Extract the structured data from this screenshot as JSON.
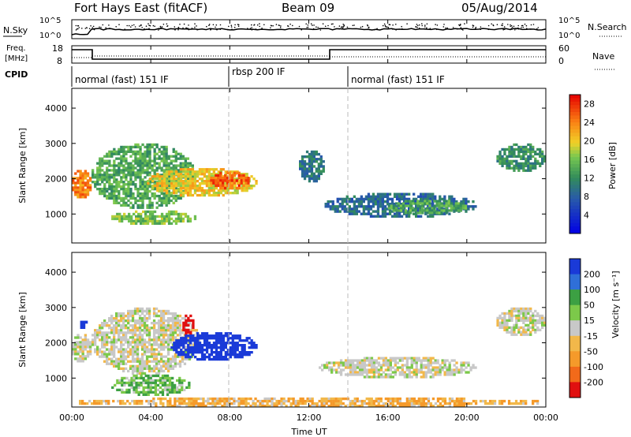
{
  "header": {
    "station": "Fort Hays East (fitACF)",
    "beam": "Beam 09",
    "date": "05/Aug/2014"
  },
  "noise_panel": {
    "left_label": "N.Sky",
    "right_label": "N.Search",
    "yticks": [
      "10^5",
      "10^0"
    ]
  },
  "freq_panel": {
    "left_label_1": "Freq.",
    "left_label_2": "[MHz]",
    "right_label": "Nave",
    "left_ticks": [
      "18",
      "8"
    ],
    "right_ticks": [
      "60",
      "0"
    ]
  },
  "cpid_panel": {
    "label": "CPID",
    "segments": [
      {
        "name": "normal (fast) 151 IF",
        "start": 0.0
      },
      {
        "name": "rbsp 200 IF",
        "start": 8.0
      },
      {
        "name": "normal (fast) 151 IF",
        "start": 14.0
      }
    ]
  },
  "chart_data": [
    {
      "type": "heatmap",
      "ylabel": "Slant Range [km]",
      "colorbar_label": "Power [dB]",
      "colorbar_ticks": [
        "28",
        "24",
        "20",
        "16",
        "12",
        "8",
        "4"
      ],
      "colorbar_range": [
        0,
        30
      ],
      "ylim": [
        180,
        4560
      ],
      "yticks": [
        1000,
        2000,
        3000,
        4000
      ],
      "xlim": [
        0,
        24
      ],
      "echo_regions": [
        {
          "t0": 0.0,
          "t1": 1.0,
          "r0": 1450,
          "r1": 2250,
          "level": 24
        },
        {
          "t0": 1.0,
          "t1": 6.3,
          "r0": 1150,
          "r1": 3000,
          "level": 14
        },
        {
          "t0": 2.0,
          "t1": 6.3,
          "r0": 700,
          "r1": 1100,
          "level": 16
        },
        {
          "t0": 3.8,
          "t1": 9.4,
          "r0": 1500,
          "r1": 2300,
          "level": 20
        },
        {
          "t0": 7.0,
          "t1": 9.0,
          "r0": 1700,
          "r1": 2200,
          "level": 26
        },
        {
          "t0": 11.5,
          "t1": 12.8,
          "r0": 1900,
          "r1": 2800,
          "level": 10
        },
        {
          "t0": 12.8,
          "t1": 20.5,
          "r0": 900,
          "r1": 1600,
          "level": 9
        },
        {
          "t0": 16.0,
          "t1": 20.0,
          "r0": 1000,
          "r1": 1400,
          "level": 14
        },
        {
          "t0": 21.5,
          "t1": 24.0,
          "r0": 2200,
          "r1": 3000,
          "level": 12
        }
      ]
    },
    {
      "type": "heatmap",
      "ylabel": "Slant Range [km]",
      "colorbar_label": "Velocity [m s⁻¹]",
      "colorbar_ticks": [
        "200",
        "100",
        "50",
        "15",
        "-15",
        "-50",
        "-100",
        "-200"
      ],
      "colorbar_range": [
        -250,
        250
      ],
      "ylim": [
        180,
        4560
      ],
      "yticks": [
        1000,
        2000,
        3000,
        4000
      ],
      "xlim": [
        0,
        24
      ],
      "xlabel": "Time UT",
      "xticks": [
        "00:00",
        "04:00",
        "08:00",
        "12:00",
        "16:00",
        "20:00",
        "00:00"
      ],
      "echo_regions": [
        {
          "t0": 0.0,
          "t1": 1.0,
          "r0": 1450,
          "r1": 2250,
          "level": 0
        },
        {
          "t0": 1.0,
          "t1": 6.5,
          "r0": 1100,
          "r1": 3000,
          "level": 0
        },
        {
          "t0": 2.0,
          "t1": 6.0,
          "r0": 500,
          "r1": 1100,
          "level": 30
        },
        {
          "t0": 5.6,
          "t1": 6.2,
          "r0": 2200,
          "r1": 2800,
          "level": -200
        },
        {
          "t0": 5.0,
          "t1": 9.4,
          "r0": 1500,
          "r1": 2300,
          "level": 200
        },
        {
          "t0": 0.3,
          "t1": 0.8,
          "r0": 2400,
          "r1": 2700,
          "level": 200
        },
        {
          "t0": 12.5,
          "t1": 20.5,
          "r0": 1000,
          "r1": 1600,
          "level": 0
        },
        {
          "t0": 21.5,
          "t1": 24.0,
          "r0": 2200,
          "r1": 3000,
          "level": 0
        },
        {
          "t0": 0.0,
          "t1": 24.0,
          "r0": 180,
          "r1": 450,
          "level": -30
        }
      ]
    }
  ]
}
